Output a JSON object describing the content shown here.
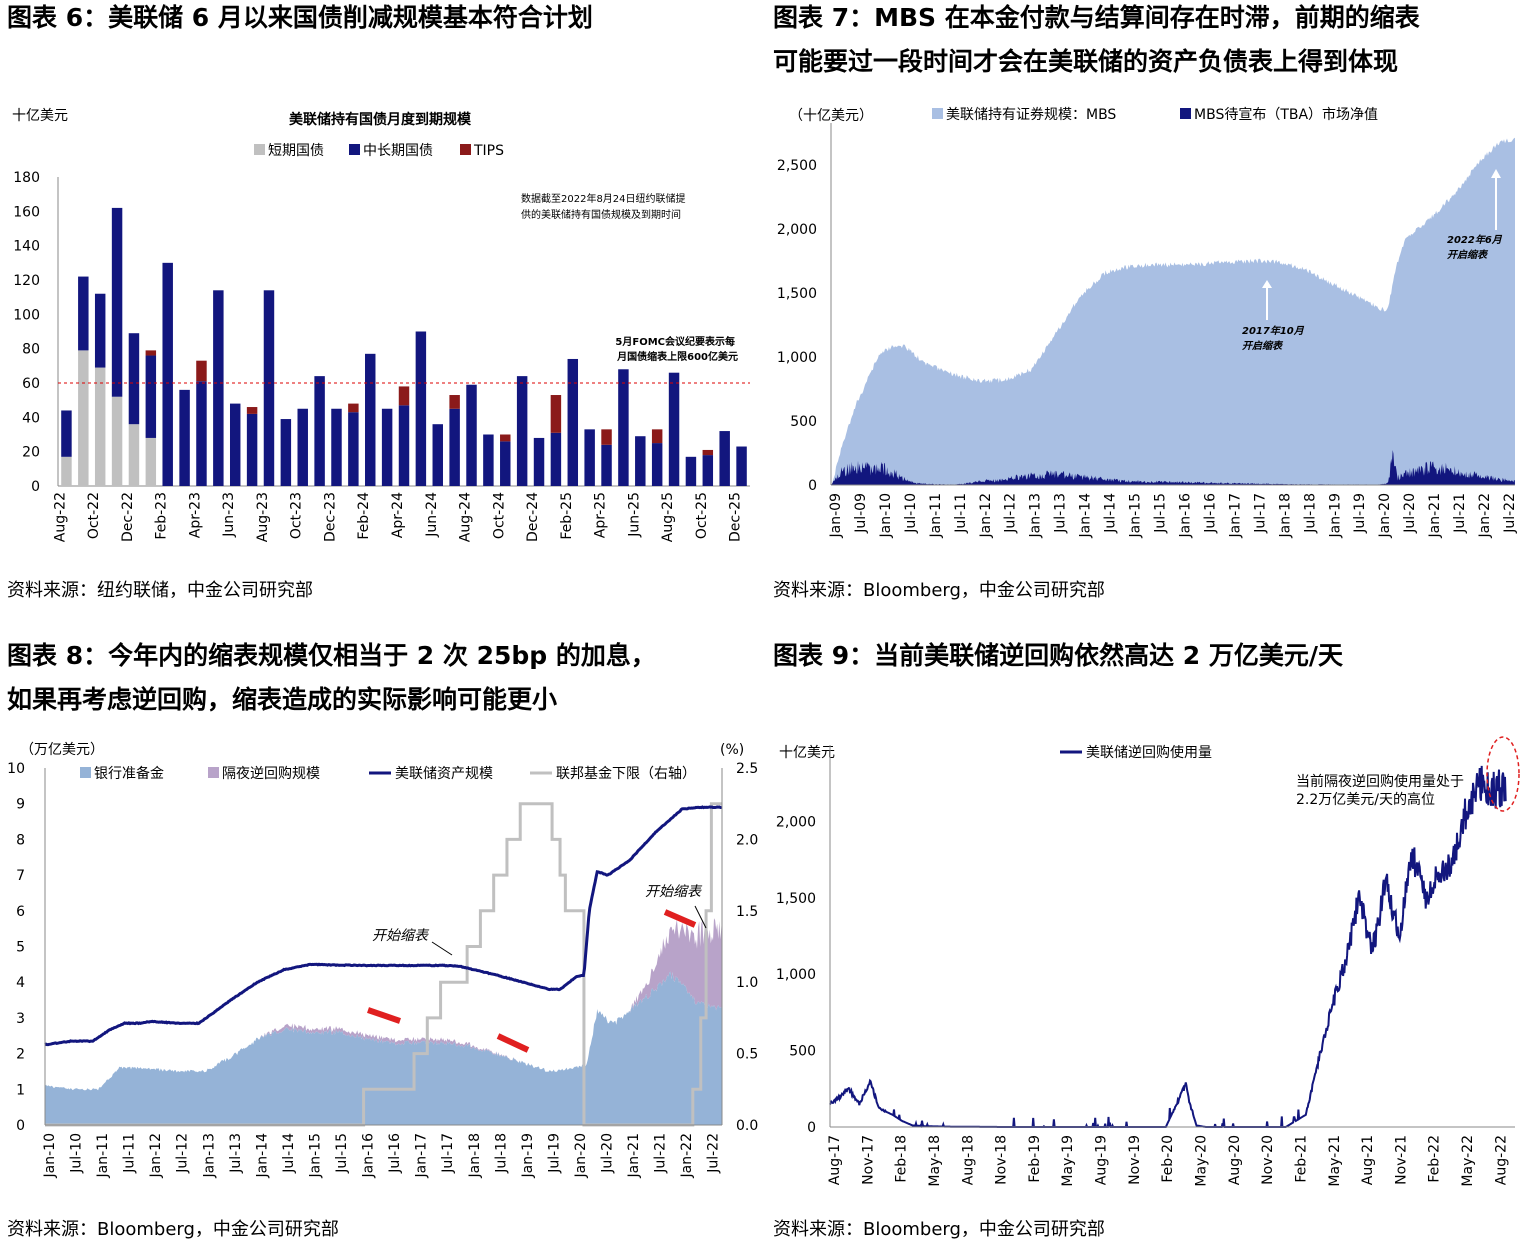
{
  "fig6": {
    "title": "图表 6：美联储 6 月以来国债削减规模基本符合计划",
    "source": "资料来源：纽约联储，中金公司研究部"
  },
  "fig7": {
    "title_line1": "图表 7：MBS 在本金付款与结算间存在时滞，前期的缩表",
    "title_line2": "可能要过一段时间才会在美联储的资产负债表上得到体现",
    "source": "资料来源：Bloomberg，中金公司研究部"
  },
  "fig8": {
    "title_line1": "图表 8：今年内的缩表规模仅相当于 2 次 25bp 的加息，",
    "title_line2": "如果再考虑逆回购，缩表造成的实际影响可能更小",
    "source": "资料来源：Bloomberg，中金公司研究部"
  },
  "fig9": {
    "title": "图表 9：当前美联储逆回购依然高达 2 万亿美元/天",
    "source": "资料来源：Bloomberg，中金公司研究部"
  },
  "colors": {
    "grey_bar": "#c0c0c0",
    "navy": "#12167e",
    "dark_red": "#8b1a1a",
    "light_blue": "#a9bfe3",
    "reserve_blue": "#95b3d7",
    "repo_purple": "#b8a3c9",
    "ffr_grey": "#c0c0c0",
    "red": "#e02020"
  },
  "chart_data": [
    {
      "id": "fig6",
      "type": "bar",
      "stacked": true,
      "title": "美联储持有国债月度到期规模",
      "ylabel": "十亿美元",
      "ylim": [
        0,
        180
      ],
      "yticks": [
        0,
        20,
        40,
        60,
        80,
        100,
        120,
        140,
        160,
        180
      ],
      "legend": [
        "短期国债",
        "中长期国债",
        "TIPS"
      ],
      "categories": [
        "Aug-22",
        "Sep-22",
        "Oct-22",
        "Nov-22",
        "Dec-22",
        "Jan-23",
        "Feb-23",
        "Mar-23",
        "Apr-23",
        "May-23",
        "Jun-23",
        "Jul-23",
        "Aug-23",
        "Sep-23",
        "Oct-23",
        "Nov-23",
        "Dec-23",
        "Jan-24",
        "Feb-24",
        "Mar-24",
        "Apr-24",
        "May-24",
        "Jun-24",
        "Jul-24",
        "Aug-24",
        "Sep-24",
        "Oct-24",
        "Nov-24",
        "Dec-24",
        "Jan-25",
        "Feb-25",
        "Mar-25",
        "Apr-25",
        "May-25",
        "Jun-25",
        "Jul-25",
        "Aug-25",
        "Sep-25",
        "Oct-25",
        "Nov-25",
        "Dec-25"
      ],
      "tick_labels": [
        "Aug-22",
        "Oct-22",
        "Dec-22",
        "Feb-23",
        "Apr-23",
        "Jun-23",
        "Aug-23",
        "Oct-23",
        "Dec-23",
        "Feb-24",
        "Apr-24",
        "Jun-24",
        "Aug-24",
        "Oct-24",
        "Dec-24",
        "Feb-25",
        "Apr-25",
        "Jun-25",
        "Aug-25",
        "Oct-25",
        "Dec-25"
      ],
      "series": [
        {
          "name": "短期国债",
          "values": [
            17,
            79,
            69,
            52,
            36,
            28,
            0,
            0,
            0,
            0,
            0,
            0,
            0,
            0,
            0,
            0,
            0,
            0,
            0,
            0,
            0,
            0,
            0,
            0,
            0,
            0,
            0,
            0,
            0,
            0,
            0,
            0,
            0,
            0,
            0,
            0,
            0,
            0,
            0,
            0,
            0
          ]
        },
        {
          "name": "中长期国债",
          "values": [
            27,
            43,
            43,
            110,
            53,
            48,
            130,
            56,
            61,
            114,
            48,
            42,
            114,
            39,
            45,
            64,
            45,
            43,
            77,
            45,
            47,
            90,
            36,
            45,
            59,
            30,
            26,
            64,
            28,
            31,
            74,
            33,
            24,
            68,
            29,
            25,
            66,
            17,
            18,
            32,
            23
          ]
        },
        {
          "name": "TIPS",
          "values": [
            0,
            0,
            0,
            0,
            0,
            3,
            0,
            0,
            12,
            0,
            0,
            4,
            0,
            0,
            0,
            0,
            0,
            5,
            0,
            0,
            11,
            0,
            0,
            8,
            0,
            0,
            4,
            0,
            0,
            22,
            0,
            0,
            9,
            0,
            0,
            8,
            0,
            0,
            3,
            0,
            0
          ]
        }
      ],
      "reference_line": {
        "y": 60,
        "label": "5月FOMC会议纪要表示每月国债缩表上限600亿美元"
      },
      "note": "数据截至2022年8月24日纽约联储提供的美联储持有国债规模及到期时间"
    },
    {
      "id": "fig7",
      "type": "area",
      "ylabel": "（十亿美元）",
      "ylim": [
        0,
        2750
      ],
      "yticks": [
        0,
        500,
        1000,
        1500,
        2000,
        2500
      ],
      "tick_labels": [
        "Jan-09",
        "Jul-09",
        "Jan-10",
        "Jul-10",
        "Jan-11",
        "Jul-11",
        "Jan-12",
        "Jul-12",
        "Jan-13",
        "Jul-13",
        "Jan-14",
        "Jul-14",
        "Jan-15",
        "Jul-15",
        "Jan-16",
        "Jul-16",
        "Jan-17",
        "Jul-17",
        "Jan-18",
        "Jul-18",
        "Jan-19",
        "Jul-19",
        "Jan-20",
        "Jul-20",
        "Jan-21",
        "Jul-21",
        "Jan-22",
        "Jul-22"
      ],
      "series": [
        {
          "name": "美联储持有证券规模：MBS",
          "x": [
            2009.0,
            2009.2,
            2009.5,
            2009.8,
            2010.0,
            2010.25,
            2010.5,
            2010.75,
            2011.0,
            2011.5,
            2012.0,
            2012.5,
            2013.0,
            2013.5,
            2014.0,
            2014.5,
            2015.0,
            2015.5,
            2016.0,
            2016.5,
            2017.0,
            2017.5,
            2017.8,
            2018.0,
            2018.5,
            2019.0,
            2019.5,
            2020.0,
            2020.15,
            2020.3,
            2020.5,
            2021.0,
            2021.5,
            2022.0,
            2022.4,
            2022.65
          ],
          "values": [
            0,
            300,
            650,
            900,
            1050,
            1110,
            1100,
            1010,
            950,
            880,
            830,
            840,
            920,
            1200,
            1500,
            1680,
            1730,
            1740,
            1740,
            1750,
            1760,
            1770,
            1770,
            1760,
            1700,
            1600,
            1500,
            1400,
            1380,
            1700,
            1950,
            2100,
            2300,
            2550,
            2700,
            2720
          ]
        },
        {
          "name": "MBS待宣布（TBA）市场净值",
          "x": [
            2009.0,
            2009.2,
            2009.5,
            2009.8,
            2010.0,
            2010.3,
            2010.5,
            2010.7,
            2011.0,
            2011.5,
            2012.0,
            2012.5,
            2013.0,
            2013.5,
            2014.0,
            2014.5,
            2015.0,
            2016.0,
            2017.0,
            2018.0,
            2019.0,
            2020.0,
            2020.15,
            2020.25,
            2020.35,
            2020.5,
            2021.0,
            2021.5,
            2022.0,
            2022.65
          ],
          "values": [
            0,
            150,
            200,
            180,
            190,
            120,
            60,
            20,
            10,
            5,
            40,
            60,
            110,
            120,
            90,
            60,
            40,
            30,
            20,
            10,
            5,
            5,
            20,
            300,
            80,
            120,
            200,
            160,
            100,
            40
          ]
        }
      ],
      "annotations": [
        "2017年10月开启缩表",
        "2022年6月开启缩表"
      ]
    },
    {
      "id": "fig8",
      "type": "area",
      "ylabel": "（万亿美元）",
      "ylabel_right": "(%)",
      "ylim": [
        0,
        10
      ],
      "ylim_right": [
        0,
        2.5
      ],
      "yticks": [
        0,
        1,
        2,
        3,
        4,
        5,
        6,
        7,
        8,
        9,
        10
      ],
      "yticks_right": [
        0.0,
        0.5,
        1.0,
        1.5,
        2.0,
        2.5
      ],
      "tick_labels": [
        "Jan-10",
        "Jul-10",
        "Jan-11",
        "Jul-11",
        "Jan-12",
        "Jul-12",
        "Jan-13",
        "Jul-13",
        "Jan-14",
        "Jul-14",
        "Jan-15",
        "Jul-15",
        "Jan-16",
        "Jul-16",
        "Jan-17",
        "Jul-17",
        "Jan-18",
        "Jul-18",
        "Jan-19",
        "Jul-19",
        "Jan-20",
        "Jul-20",
        "Jan-21",
        "Jul-21",
        "Jan-22",
        "Jul-22"
      ],
      "series": [
        {
          "name": "银行准备金",
          "x": [
            2010.0,
            2010.5,
            2011.0,
            2011.4,
            2011.8,
            2012.5,
            2013.0,
            2013.5,
            2014.0,
            2014.5,
            2015.0,
            2015.5,
            2016.0,
            2016.5,
            2017.0,
            2017.5,
            2018.0,
            2018.5,
            2019.0,
            2019.5,
            2020.0,
            2020.2,
            2020.4,
            2020.7,
            2021.0,
            2021.5,
            2021.8,
            2022.0,
            2022.3,
            2022.6
          ],
          "values": [
            1.1,
            1.0,
            1.0,
            1.6,
            1.6,
            1.5,
            1.5,
            1.9,
            2.4,
            2.7,
            2.6,
            2.6,
            2.45,
            2.3,
            2.3,
            2.3,
            2.2,
            2.0,
            1.75,
            1.5,
            1.6,
            1.7,
            3.2,
            2.8,
            3.2,
            3.8,
            4.2,
            3.9,
            3.4,
            3.3
          ]
        },
        {
          "name": "隔夜逆回购规模",
          "x": [
            2010.0,
            2014.0,
            2014.5,
            2015.0,
            2016.0,
            2017.0,
            2017.5,
            2018.0,
            2019.0,
            2020.0,
            2021.0,
            2021.3,
            2021.6,
            2022.0,
            2022.3,
            2022.6
          ],
          "values": [
            0,
            0,
            0.1,
            0.1,
            0.1,
            0.1,
            0.1,
            0.05,
            0,
            0,
            0,
            0.3,
            0.9,
            1.6,
            1.9,
            2.2
          ]
        },
        {
          "name": "美联储资产规模",
          "x": [
            2010.0,
            2010.5,
            2010.9,
            2011.2,
            2011.5,
            2011.8,
            2012.0,
            2012.5,
            2012.9,
            2013.5,
            2014.0,
            2014.5,
            2015.0,
            2015.5,
            2016.0,
            2016.5,
            2017.0,
            2017.5,
            2017.8,
            2018.5,
            2019.0,
            2019.5,
            2019.7,
            2020.0,
            2020.15,
            2020.25,
            2020.4,
            2020.6,
            2021.0,
            2021.5,
            2022.0,
            2022.3,
            2022.6
          ],
          "values": [
            2.25,
            2.35,
            2.35,
            2.65,
            2.85,
            2.85,
            2.9,
            2.85,
            2.85,
            3.5,
            4.0,
            4.35,
            4.5,
            4.48,
            4.47,
            4.47,
            4.47,
            4.47,
            4.45,
            4.2,
            4.0,
            3.8,
            3.8,
            4.15,
            4.2,
            6.0,
            7.1,
            7.0,
            7.4,
            8.2,
            8.85,
            8.9,
            8.9
          ]
        },
        {
          "name": "联邦基金下限（右轴）",
          "axis": "right",
          "step": true,
          "x": [
            2010.0,
            2015.95,
            2016.0,
            2016.95,
            2017.2,
            2017.45,
            2017.95,
            2018.2,
            2018.45,
            2018.7,
            2018.95,
            2019.55,
            2019.7,
            2019.8,
            2020.15,
            2020.2,
            2022.2,
            2022.35,
            2022.45,
            2022.55,
            2022.7
          ],
          "values": [
            0,
            0,
            0.25,
            0.5,
            0.75,
            1.0,
            1.25,
            1.5,
            1.75,
            2.0,
            2.25,
            2.0,
            1.75,
            1.5,
            0.0,
            0.0,
            0.25,
            0.75,
            1.5,
            2.25,
            2.25
          ]
        }
      ],
      "annotations": [
        "开始缩表",
        "开始缩表"
      ]
    },
    {
      "id": "fig9",
      "type": "line",
      "ylabel": "十亿美元",
      "ylim": [
        0,
        2500
      ],
      "yticks": [
        0,
        500,
        1000,
        1500,
        2000
      ],
      "tick_labels": [
        "Aug-17",
        "Nov-17",
        "Feb-18",
        "May-18",
        "Aug-18",
        "Nov-18",
        "Feb-19",
        "May-19",
        "Aug-19",
        "Nov-19",
        "Feb-20",
        "May-20",
        "Aug-20",
        "Nov-20",
        "Feb-21",
        "May-21",
        "Aug-21",
        "Nov-21",
        "Feb-22",
        "May-22",
        "Aug-22"
      ],
      "series": [
        {
          "name": "美联储逆回购使用量",
          "x": [
            2017.58,
            2017.65,
            2017.72,
            2017.8,
            2017.88,
            2017.95,
            2018.05,
            2018.12,
            2018.2,
            2018.3,
            2018.5,
            2018.9,
            2019.3,
            2019.8,
            2020.1,
            2020.25,
            2020.28,
            2020.33,
            2020.4,
            2020.8,
            2021.0,
            2021.15,
            2021.25,
            2021.35,
            2021.45,
            2021.55,
            2021.65,
            2021.75,
            2021.85,
            2021.95,
            2022.05,
            2022.15,
            2022.25,
            2022.35,
            2022.45,
            2022.55,
            2022.65
          ],
          "values": [
            150,
            200,
            250,
            150,
            300,
            120,
            80,
            40,
            10,
            5,
            2,
            0,
            0,
            0,
            0,
            280,
            150,
            10,
            0,
            0,
            0,
            80,
            450,
            800,
            1100,
            1500,
            1150,
            1600,
            1250,
            1800,
            1500,
            1650,
            1750,
            2050,
            2250,
            2200,
            2220
          ]
        }
      ],
      "annotation": "当前隔夜逆回购使用量处于2.2万亿美元/天的高位"
    }
  ]
}
